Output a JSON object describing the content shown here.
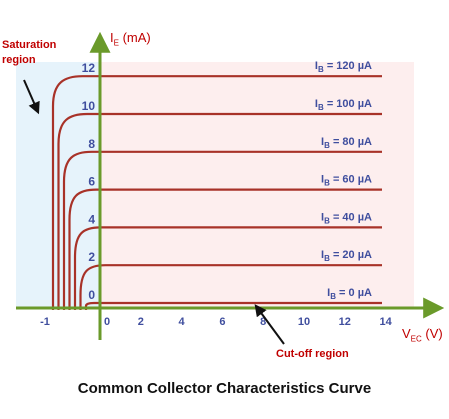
{
  "chart_data": {
    "type": "line",
    "title": "Common Collector Characteristics Curve",
    "ylabel_main": "I",
    "ylabel_sub": "E",
    "ylabel_unit": " (mA)",
    "xlabel_main": "V",
    "xlabel_sub": "EC",
    "xlabel_unit": " (V)",
    "xlim": [
      -1,
      14
    ],
    "ylim": [
      0,
      12
    ],
    "x_ticks": [
      "-1",
      "0",
      "2",
      "4",
      "6",
      "8",
      "10",
      "12",
      "14"
    ],
    "y_ticks": [
      "0",
      "2",
      "4",
      "6",
      "8",
      "10",
      "12"
    ],
    "series": [
      {
        "name": "I_B = 0 µA",
        "label_main": "I",
        "label_sub": "B",
        "label_rest": " = 0 µA",
        "ie_ma": 0
      },
      {
        "name": "I_B = 20 µA",
        "label_main": "I",
        "label_sub": "B",
        "label_rest": " = 20 µA",
        "ie_ma": 2
      },
      {
        "name": "I_B = 40 µA",
        "label_main": "I",
        "label_sub": "B",
        "label_rest": " = 40 µA",
        "ie_ma": 4
      },
      {
        "name": "I_B = 60 µA",
        "label_main": "I",
        "label_sub": "B",
        "label_rest": " = 60 µA",
        "ie_ma": 6
      },
      {
        "name": "I_B = 80 µA",
        "label_main": "I",
        "label_sub": "B",
        "label_rest": " = 80 µA",
        "ie_ma": 8
      },
      {
        "name": "I_B = 100 µA",
        "label_main": "I",
        "label_sub": "B",
        "label_rest": " = 100 µA",
        "ie_ma": 10
      },
      {
        "name": "I_B = 120 µA",
        "label_main": "I",
        "label_sub": "B",
        "label_rest": " = 120 µA",
        "ie_ma": 12
      }
    ],
    "annotations": {
      "saturation": "Saturation\nregion",
      "cutoff": "Cut-off region"
    },
    "colors": {
      "axis": "#6a9a2a",
      "curve": "#a83228",
      "tick_label": "#3f4e9e",
      "annotation": "#c00000",
      "saturation_fill": "#e6f3fb",
      "active_fill": "#fdeeee"
    }
  }
}
